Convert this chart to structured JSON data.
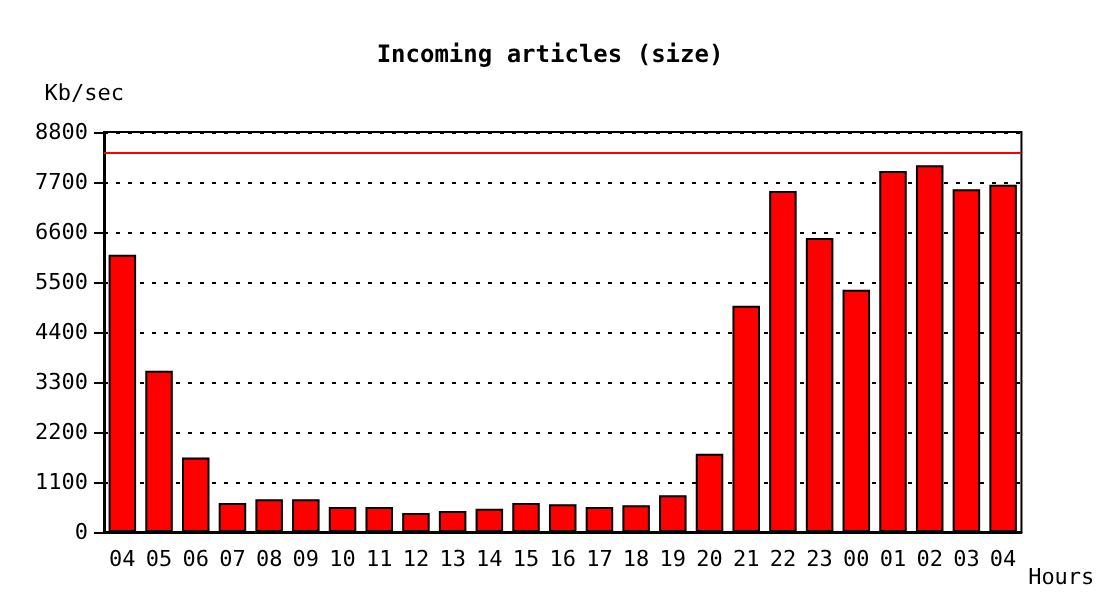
{
  "chart_data": {
    "type": "bar",
    "title": "Incoming articles (size)",
    "ylabel": "Kb/sec",
    "xlabel": "Hours",
    "categories": [
      "04",
      "05",
      "06",
      "07",
      "08",
      "09",
      "10",
      "11",
      "12",
      "13",
      "14",
      "15",
      "16",
      "17",
      "18",
      "19",
      "20",
      "21",
      "22",
      "23",
      "00",
      "01",
      "02",
      "03",
      "04"
    ],
    "series": [
      {
        "color": "#ff0000",
        "values": [
          6100,
          3550,
          1640,
          640,
          720,
          720,
          550,
          550,
          420,
          460,
          510,
          640,
          610,
          550,
          590,
          810,
          1720,
          4980,
          7500,
          6470,
          5330,
          7940,
          8070,
          7540,
          7640
        ]
      }
    ],
    "ylim": [
      0,
      8800
    ],
    "yticks": [
      0,
      1100,
      2200,
      3300,
      4400,
      5500,
      6600,
      7700,
      8800
    ],
    "grid": "y",
    "ref_lines": [
      {
        "axis": "y",
        "value": 8360,
        "color": "#ff0000"
      }
    ]
  }
}
